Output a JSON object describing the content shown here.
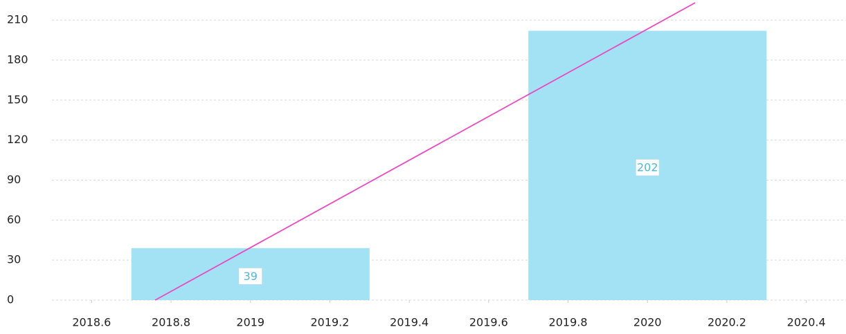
{
  "chart_data": {
    "type": "bar",
    "x": [
      2019,
      2020
    ],
    "values": [
      39,
      202
    ],
    "color": "#a3e2f4",
    "bar_width": 0.6,
    "label_color": "#4fb6d6",
    "trend": {
      "x": [
        2018.76,
        2020.12
      ],
      "values": [
        0,
        223
      ],
      "color": "#e84ac0"
    },
    "xlim": [
      2018.5,
      2020.5
    ],
    "xticks": [
      2018.6,
      2018.8,
      2019,
      2019.2,
      2019.4,
      2019.6,
      2019.8,
      2020,
      2020.2,
      2020.4
    ],
    "ylim": [
      0,
      223
    ],
    "yticks": [
      0,
      30,
      60,
      90,
      120,
      150,
      180,
      210
    ],
    "grid": true
  }
}
